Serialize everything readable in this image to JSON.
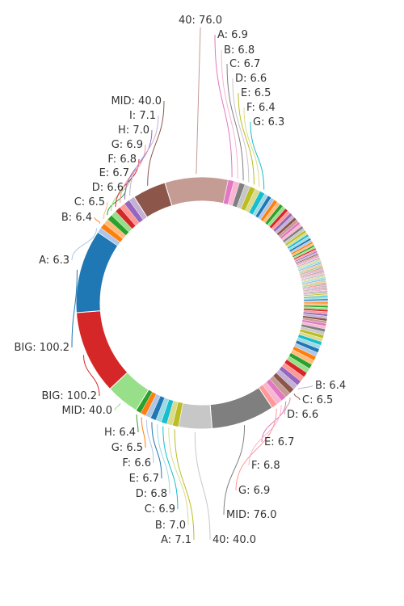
{
  "chart_data": {
    "type": "pie",
    "variant": "donut",
    "title": "",
    "slices": [
      {
        "label": "40: 76.0",
        "value": 76.0,
        "color": "#c49c94"
      },
      {
        "label": "A: 6.9",
        "value": 6.9,
        "color": "#e377c2"
      },
      {
        "label": "B: 6.8",
        "value": 6.8,
        "color": "#f7b6d2"
      },
      {
        "label": "C: 6.7",
        "value": 6.7,
        "color": "#7f7f7f"
      },
      {
        "label": "D: 6.6",
        "value": 6.6,
        "color": "#c7c7c7"
      },
      {
        "label": "E: 6.5",
        "value": 6.5,
        "color": "#bcbd22"
      },
      {
        "label": "F: 6.4",
        "value": 6.4,
        "color": "#dbdb8d"
      },
      {
        "label": "G: 6.3",
        "value": 6.3,
        "color": "#17becf"
      },
      {
        "label": "",
        "value": 4.6,
        "color": "#9edae5"
      },
      {
        "label": "",
        "value": 4.5,
        "color": "#1f77b4"
      },
      {
        "label": "",
        "value": 4.4,
        "color": "#aec7e8"
      },
      {
        "label": "",
        "value": 4.3,
        "color": "#ff7f0e"
      },
      {
        "label": "",
        "value": 4.2,
        "color": "#ffbb78"
      },
      {
        "label": "",
        "value": 4.1,
        "color": "#2ca02c"
      },
      {
        "label": "",
        "value": 4.0,
        "color": "#98df8a"
      },
      {
        "label": "",
        "value": 3.9,
        "color": "#d62728"
      },
      {
        "label": "",
        "value": 3.8,
        "color": "#ff9896"
      },
      {
        "label": "",
        "value": 3.7,
        "color": "#9467bd"
      },
      {
        "label": "",
        "value": 3.6,
        "color": "#c5b0d5"
      },
      {
        "label": "",
        "value": 3.5,
        "color": "#8c564b"
      },
      {
        "label": "",
        "value": 3.4,
        "color": "#c49c94"
      },
      {
        "label": "",
        "value": 3.3,
        "color": "#e377c2"
      },
      {
        "label": "",
        "value": 3.2,
        "color": "#f7b6d2"
      },
      {
        "label": "",
        "value": 3.1,
        "color": "#7f7f7f"
      },
      {
        "label": "",
        "value": 3.0,
        "color": "#c7c7c7"
      },
      {
        "label": "",
        "value": 2.9,
        "color": "#bcbd22"
      },
      {
        "label": "",
        "value": 2.8,
        "color": "#dbdb8d"
      },
      {
        "label": "",
        "value": 2.7,
        "color": "#17becf"
      },
      {
        "label": "",
        "value": 2.6,
        "color": "#9edae5"
      },
      {
        "label": "",
        "value": 2.5,
        "color": "#1f77b4"
      },
      {
        "label": "",
        "value": 2.4,
        "color": "#aec7e8"
      },
      {
        "label": "",
        "value": 2.3,
        "color": "#ff7f0e"
      },
      {
        "label": "",
        "value": 2.2,
        "color": "#ffbb78"
      },
      {
        "label": "",
        "value": 2.1,
        "color": "#2ca02c"
      },
      {
        "label": "",
        "value": 2.0,
        "color": "#98df8a"
      },
      {
        "label": "",
        "value": 1.9,
        "color": "#d62728"
      },
      {
        "label": "",
        "value": 1.8,
        "color": "#ff9896"
      },
      {
        "label": "",
        "value": 1.7,
        "color": "#9467bd"
      },
      {
        "label": "",
        "value": 1.6,
        "color": "#c5b0d5"
      },
      {
        "label": "",
        "value": 1.5,
        "color": "#8c564b"
      },
      {
        "label": "",
        "value": 1.4,
        "color": "#c49c94"
      },
      {
        "label": "",
        "value": 1.3,
        "color": "#e377c2"
      },
      {
        "label": "",
        "value": 1.2,
        "color": "#f7b6d2"
      },
      {
        "label": "",
        "value": 1.1,
        "color": "#7f7f7f"
      },
      {
        "label": "",
        "value": 1.0,
        "color": "#c7c7c7"
      },
      {
        "label": "",
        "value": 1.0,
        "color": "#bcbd22"
      },
      {
        "label": "",
        "value": 1.0,
        "color": "#dbdb8d"
      },
      {
        "label": "",
        "value": 1.0,
        "color": "#17becf"
      },
      {
        "label": "",
        "value": 1.0,
        "color": "#9edae5"
      },
      {
        "label": "",
        "value": 1.0,
        "color": "#1f77b4"
      },
      {
        "label": "",
        "value": 1.0,
        "color": "#aec7e8"
      },
      {
        "label": "",
        "value": 1.0,
        "color": "#ff7f0e"
      },
      {
        "label": "",
        "value": 1.0,
        "color": "#ffbb78"
      },
      {
        "label": "",
        "value": 1.0,
        "color": "#2ca02c"
      },
      {
        "label": "",
        "value": 1.0,
        "color": "#98df8a"
      },
      {
        "label": "",
        "value": 1.0,
        "color": "#d62728"
      },
      {
        "label": "",
        "value": 1.0,
        "color": "#ff9896"
      },
      {
        "label": "",
        "value": 1.0,
        "color": "#9467bd"
      },
      {
        "label": "",
        "value": 1.0,
        "color": "#c5b0d5"
      },
      {
        "label": "",
        "value": 1.0,
        "color": "#8c564b"
      },
      {
        "label": "",
        "value": 1.0,
        "color": "#c49c94"
      },
      {
        "label": "",
        "value": 1.0,
        "color": "#e377c2"
      },
      {
        "label": "",
        "value": 1.0,
        "color": "#f7b6d2"
      },
      {
        "label": "",
        "value": 1.0,
        "color": "#7f7f7f"
      },
      {
        "label": "",
        "value": 1.0,
        "color": "#c7c7c7"
      },
      {
        "label": "",
        "value": 1.0,
        "color": "#bcbd22"
      },
      {
        "label": "",
        "value": 1.0,
        "color": "#dbdb8d"
      },
      {
        "label": "",
        "value": 1.0,
        "color": "#17becf"
      },
      {
        "label": "",
        "value": 1.0,
        "color": "#9edae5"
      },
      {
        "label": "",
        "value": 1.0,
        "color": "#1f77b4"
      },
      {
        "label": "",
        "value": 1.0,
        "color": "#aec7e8"
      },
      {
        "label": "",
        "value": 1.0,
        "color": "#ff7f0e"
      },
      {
        "label": "",
        "value": 1.0,
        "color": "#ffbb78"
      },
      {
        "label": "",
        "value": 1.0,
        "color": "#2ca02c"
      },
      {
        "label": "",
        "value": 1.0,
        "color": "#98df8a"
      },
      {
        "label": "",
        "value": 1.0,
        "color": "#d62728"
      },
      {
        "label": "",
        "value": 1.0,
        "color": "#ff9896"
      },
      {
        "label": "",
        "value": 1.0,
        "color": "#9467bd"
      },
      {
        "label": "",
        "value": 1.0,
        "color": "#c5b0d5"
      },
      {
        "label": "",
        "value": 1.0,
        "color": "#8c564b"
      },
      {
        "label": "",
        "value": 1.0,
        "color": "#c49c94"
      },
      {
        "label": "",
        "value": 1.1,
        "color": "#e377c2"
      },
      {
        "label": "",
        "value": 1.2,
        "color": "#f7b6d2"
      },
      {
        "label": "",
        "value": 1.3,
        "color": "#7f7f7f"
      },
      {
        "label": "",
        "value": 1.4,
        "color": "#c7c7c7"
      },
      {
        "label": "",
        "value": 1.5,
        "color": "#bcbd22"
      },
      {
        "label": "",
        "value": 1.6,
        "color": "#dbdb8d"
      },
      {
        "label": "",
        "value": 1.7,
        "color": "#17becf"
      },
      {
        "label": "",
        "value": 1.8,
        "color": "#9edae5"
      },
      {
        "label": "",
        "value": 1.9,
        "color": "#1f77b4"
      },
      {
        "label": "",
        "value": 2.0,
        "color": "#aec7e8"
      },
      {
        "label": "",
        "value": 2.1,
        "color": "#ff7f0e"
      },
      {
        "label": "",
        "value": 2.2,
        "color": "#ffbb78"
      },
      {
        "label": "",
        "value": 2.3,
        "color": "#2ca02c"
      },
      {
        "label": "",
        "value": 2.4,
        "color": "#98df8a"
      },
      {
        "label": "",
        "value": 2.5,
        "color": "#d62728"
      },
      {
        "label": "",
        "value": 2.6,
        "color": "#ff9896"
      },
      {
        "label": "",
        "value": 2.7,
        "color": "#9467bd"
      },
      {
        "label": "",
        "value": 2.8,
        "color": "#c5b0d5"
      },
      {
        "label": "",
        "value": 2.9,
        "color": "#8c564b"
      },
      {
        "label": "",
        "value": 3.0,
        "color": "#c49c94"
      },
      {
        "label": "",
        "value": 3.2,
        "color": "#e377c2"
      },
      {
        "label": "",
        "value": 3.4,
        "color": "#f7b6d2"
      },
      {
        "label": "",
        "value": 3.6,
        "color": "#7f7f7f"
      },
      {
        "label": "",
        "value": 3.8,
        "color": "#c7c7c7"
      },
      {
        "label": "",
        "value": 4.0,
        "color": "#bcbd22"
      },
      {
        "label": "",
        "value": 4.2,
        "color": "#dbdb8d"
      },
      {
        "label": "",
        "value": 4.4,
        "color": "#17becf"
      },
      {
        "label": "",
        "value": 4.6,
        "color": "#9edae5"
      },
      {
        "label": "",
        "value": 4.8,
        "color": "#1f77b4"
      },
      {
        "label": "",
        "value": 5.0,
        "color": "#aec7e8"
      },
      {
        "label": "",
        "value": 5.2,
        "color": "#ff7f0e"
      },
      {
        "label": "",
        "value": 5.4,
        "color": "#ffbb78"
      },
      {
        "label": "",
        "value": 5.6,
        "color": "#2ca02c"
      },
      {
        "label": "",
        "value": 5.8,
        "color": "#98df8a"
      },
      {
        "label": "",
        "value": 6.0,
        "color": "#d62728"
      },
      {
        "label": "",
        "value": 6.2,
        "color": "#ff9896"
      },
      {
        "label": "A: 6.3",
        "value": 6.3,
        "color": "#9467bd"
      },
      {
        "label": "B: 6.4",
        "value": 6.4,
        "color": "#c5b0d5"
      },
      {
        "label": "C: 6.5",
        "value": 6.5,
        "color": "#8c564b"
      },
      {
        "label": "D: 6.6",
        "value": 6.6,
        "color": "#c49c94"
      },
      {
        "label": "E: 6.7",
        "value": 6.7,
        "color": "#e377c2"
      },
      {
        "label": "F: 6.8",
        "value": 6.8,
        "color": "#f7b6d2"
      },
      {
        "label": "G: 6.9",
        "value": 6.9,
        "color": "#ff9896"
      },
      {
        "label": "MID: 76.0",
        "value": 76.0,
        "color": "#7f7f7f"
      },
      {
        "label": "40: 40.0",
        "value": 40.0,
        "color": "#c7c7c7"
      },
      {
        "label": "A: 7.1",
        "value": 7.1,
        "color": "#bcbd22"
      },
      {
        "label": "B: 7.0",
        "value": 7.0,
        "color": "#dbdb8d"
      },
      {
        "label": "C: 6.9",
        "value": 6.9,
        "color": "#17becf"
      },
      {
        "label": "D: 6.8",
        "value": 6.8,
        "color": "#9edae5"
      },
      {
        "label": "E: 6.7",
        "value": 6.7,
        "color": "#1f77b4"
      },
      {
        "label": "F: 6.6",
        "value": 6.6,
        "color": "#aec7e8"
      },
      {
        "label": "G: 6.5",
        "value": 6.5,
        "color": "#ff7f0e"
      },
      {
        "label": "H: 6.4",
        "value": 6.4,
        "color": "#2ca02c"
      },
      {
        "label": "MID: 40.0",
        "value": 40.0,
        "color": "#98df8a"
      },
      {
        "label": "BIG: 100.2",
        "value": 100.2,
        "color": "#d62728"
      },
      {
        "label": "BIG: 100.2",
        "value": 100.2,
        "color": "#1f77b4"
      },
      {
        "label": "A: 6.3",
        "value": 6.3,
        "color": "#aec7e8"
      },
      {
        "label": "B: 6.4",
        "value": 6.4,
        "color": "#ff7f0e"
      },
      {
        "label": "C: 6.5",
        "value": 6.5,
        "color": "#ffbb78"
      },
      {
        "label": "D: 6.6",
        "value": 6.6,
        "color": "#2ca02c"
      },
      {
        "label": "E: 6.7",
        "value": 6.7,
        "color": "#98df8a"
      },
      {
        "label": "F: 6.8",
        "value": 6.8,
        "color": "#d62728"
      },
      {
        "label": "G: 6.9",
        "value": 6.9,
        "color": "#ff9896"
      },
      {
        "label": "H: 7.0",
        "value": 7.0,
        "color": "#9467bd"
      },
      {
        "label": "I: 7.1",
        "value": 7.1,
        "color": "#c5b0d5"
      },
      {
        "label": "MID: 40.0",
        "value": 40.0,
        "color": "#8c564b"
      }
    ],
    "legend": "none"
  }
}
